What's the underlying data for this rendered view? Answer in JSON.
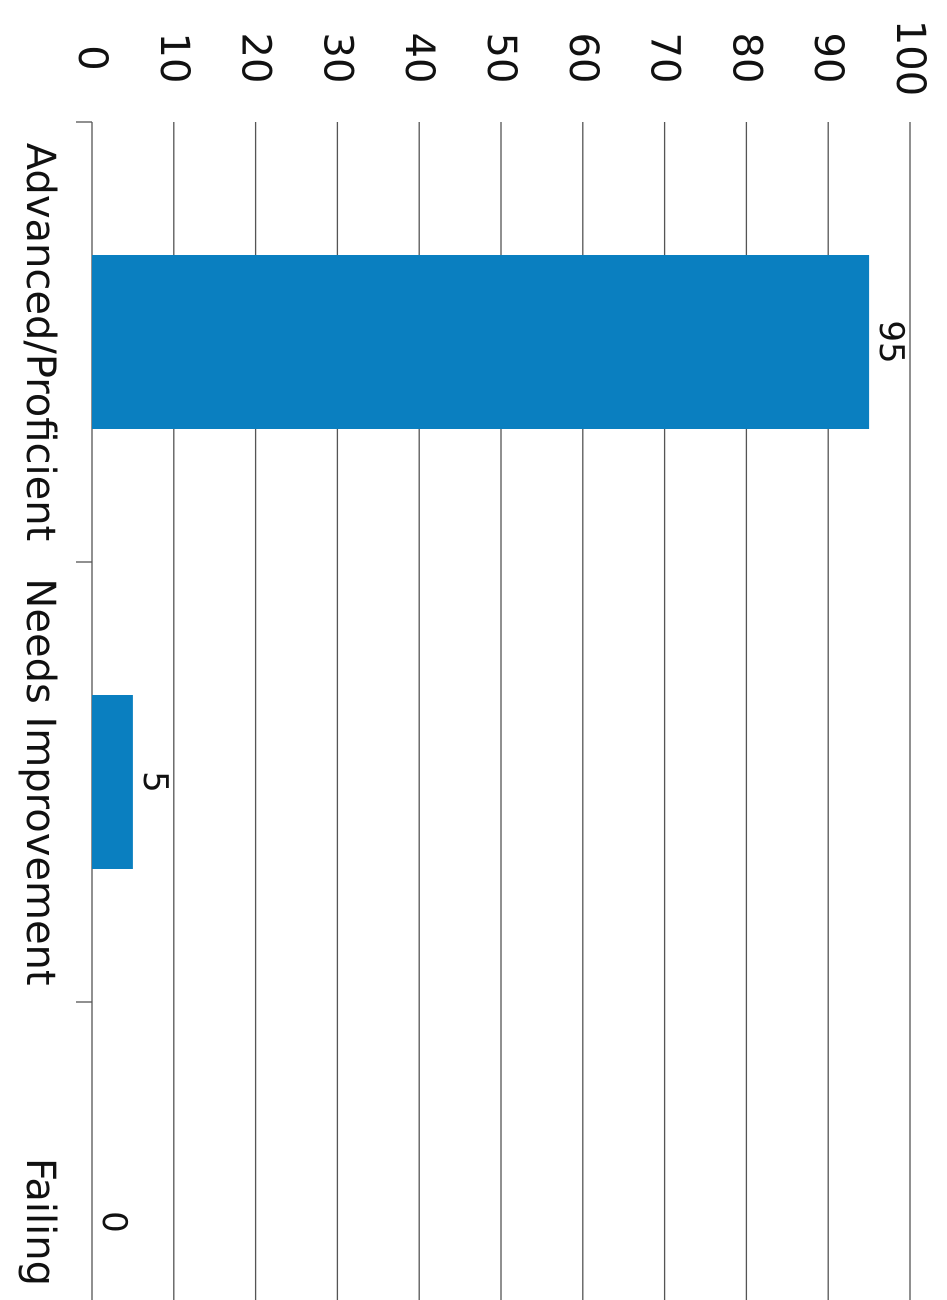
{
  "chart_data": {
    "type": "bar",
    "orientation": "rotated 90 degrees clockwise",
    "categories": [
      "Advanced/Proficient",
      "Needs Improvement",
      "Failing"
    ],
    "series": [
      {
        "values": [
          95,
          5,
          0
        ],
        "color": "#0a7fc0"
      }
    ],
    "data_labels": [
      "95",
      "5",
      "0"
    ],
    "value_axis": {
      "range": [
        0,
        100
      ],
      "ticks": [
        "0",
        "10",
        "20",
        "30",
        "40",
        "50",
        "60",
        "70",
        "80",
        "90",
        "100"
      ]
    },
    "grid": true,
    "legend": "none",
    "title": "",
    "xlabel": "",
    "ylabel": ""
  }
}
